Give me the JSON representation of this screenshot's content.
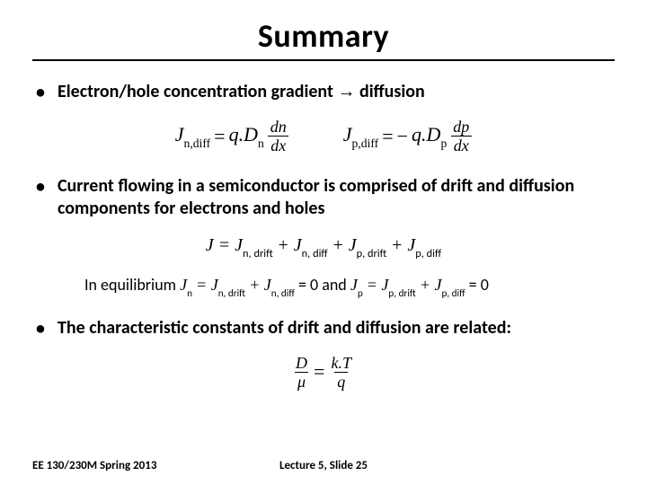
{
  "title": "Summary",
  "bullets": {
    "b1_pre": "Electron/hole concentration gradient ",
    "b1_arrow": "→",
    "b1_post": " diffusion",
    "b2": "Current flowing in a semiconductor is comprised of drift and diffusion components for electrons and holes",
    "b3": "The characteristic constants of drift and diffusion are related:"
  },
  "eq1": {
    "lhs": "J",
    "lhs_sub": "n,diff",
    "eq": " = ",
    "q": "q.D",
    "q_sub": "n",
    "frac_num": "dn",
    "frac_den": "dx"
  },
  "eq2": {
    "lhs": "J",
    "lhs_sub": "p,diff",
    "eq": " = ",
    "neg": "−",
    "q": "q.D",
    "q_sub": "p",
    "frac_num": "dp",
    "frac_den": "dx"
  },
  "totalJ": {
    "lhs": "J = J",
    "s1": "n, drift",
    "plus": " + J",
    "s2": "n, diff",
    "s3": "p, drift",
    "s4": "p, diff"
  },
  "equil": {
    "pre": "In equilibrium  ",
    "jn": "J",
    "jn_sub": "n",
    "eq": " = J",
    "t1": "n, drift",
    "plus": " + J",
    "t2": "n, diff",
    "zero": " = 0",
    "and": "  and  ",
    "jp": "J",
    "jp_sub": "p",
    "t3": "p, drift",
    "t4": "p, diff"
  },
  "einstein": {
    "num1": "D",
    "den1": "μ",
    "eq": " = ",
    "num2": "k.T",
    "den2": "q"
  },
  "footer": {
    "left": "EE 130/230M Spring 2013",
    "right": "Lecture 5, Slide 25"
  }
}
